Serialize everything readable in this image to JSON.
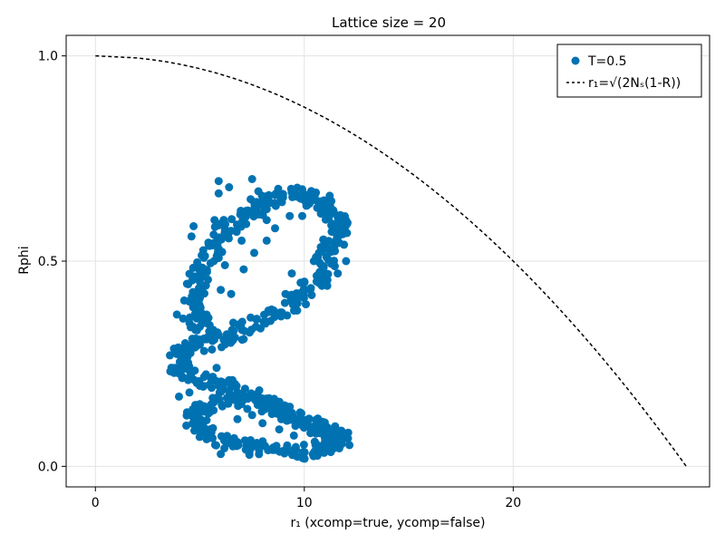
{
  "chart_data": {
    "type": "scatter",
    "title": "Lattice size = 20",
    "xlabel": "r₁ (xcomp=true, ycomp=false)",
    "ylabel": "Rphi",
    "xlim": [
      -1.4,
      29.4
    ],
    "ylim": [
      -0.05,
      1.05
    ],
    "xticks": [
      0,
      10,
      20
    ],
    "xtick_labels": [
      "0",
      "10",
      "20"
    ],
    "yticks": [
      0.0,
      0.5,
      1.0
    ],
    "ytick_labels": [
      "0.0",
      "0.5",
      "1.0"
    ],
    "grid": true,
    "legend_position": "top-right",
    "series": [
      {
        "name": "T=0.5",
        "kind": "scatter",
        "color": "#0072B2",
        "path": [
          [
            11.6,
            0.06
          ],
          [
            11.2,
            0.05
          ],
          [
            10.5,
            0.04
          ],
          [
            9.7,
            0.035
          ],
          [
            8.9,
            0.035
          ],
          [
            8.0,
            0.04
          ],
          [
            7.2,
            0.05
          ],
          [
            6.4,
            0.06
          ],
          [
            5.6,
            0.075
          ],
          [
            5.0,
            0.09
          ],
          [
            4.7,
            0.11
          ],
          [
            4.9,
            0.13
          ],
          [
            5.5,
            0.15
          ],
          [
            6.3,
            0.165
          ],
          [
            7.2,
            0.16
          ],
          [
            8.1,
            0.15
          ],
          [
            9.0,
            0.135
          ],
          [
            9.9,
            0.115
          ],
          [
            10.8,
            0.095
          ],
          [
            11.5,
            0.075
          ],
          [
            11.7,
            0.065
          ],
          [
            11.0,
            0.085
          ],
          [
            10.2,
            0.11
          ],
          [
            9.3,
            0.13
          ],
          [
            8.4,
            0.15
          ],
          [
            7.6,
            0.165
          ],
          [
            6.8,
            0.18
          ],
          [
            6.0,
            0.195
          ],
          [
            5.2,
            0.205
          ],
          [
            4.5,
            0.215
          ],
          [
            4.1,
            0.235
          ],
          [
            3.9,
            0.255
          ],
          [
            4.1,
            0.275
          ],
          [
            4.6,
            0.29
          ],
          [
            5.4,
            0.3
          ],
          [
            6.3,
            0.315
          ],
          [
            7.2,
            0.335
          ],
          [
            8.0,
            0.36
          ],
          [
            8.9,
            0.38
          ],
          [
            9.6,
            0.4
          ],
          [
            10.1,
            0.425
          ],
          [
            10.5,
            0.45
          ],
          [
            10.8,
            0.48
          ],
          [
            11.1,
            0.51
          ],
          [
            11.3,
            0.54
          ],
          [
            11.6,
            0.57
          ],
          [
            11.7,
            0.59
          ],
          [
            11.5,
            0.61
          ],
          [
            11.2,
            0.63
          ],
          [
            10.7,
            0.645
          ],
          [
            10.2,
            0.655
          ],
          [
            9.6,
            0.665
          ],
          [
            9.0,
            0.66
          ],
          [
            8.4,
            0.65
          ],
          [
            7.8,
            0.635
          ],
          [
            7.2,
            0.615
          ],
          [
            6.7,
            0.595
          ],
          [
            6.2,
            0.57
          ],
          [
            5.8,
            0.545
          ],
          [
            5.5,
            0.52
          ],
          [
            5.2,
            0.49
          ],
          [
            4.9,
            0.46
          ],
          [
            4.7,
            0.43
          ],
          [
            4.6,
            0.4
          ],
          [
            4.8,
            0.37
          ],
          [
            5.1,
            0.34
          ],
          [
            5.4,
            0.31
          ]
        ],
        "extra_points": [
          [
            5.9,
            0.695
          ],
          [
            6.4,
            0.68
          ],
          [
            7.5,
            0.7
          ],
          [
            7.8,
            0.67
          ],
          [
            5.9,
            0.665
          ],
          [
            4.7,
            0.585
          ],
          [
            4.6,
            0.56
          ],
          [
            5.7,
            0.6
          ],
          [
            6.8,
            0.58
          ],
          [
            8.2,
            0.55
          ],
          [
            8.6,
            0.58
          ],
          [
            7.0,
            0.55
          ],
          [
            6.2,
            0.49
          ],
          [
            7.1,
            0.48
          ],
          [
            7.6,
            0.52
          ],
          [
            6.0,
            0.43
          ],
          [
            6.5,
            0.42
          ],
          [
            3.9,
            0.37
          ],
          [
            4.2,
            0.36
          ],
          [
            5.0,
            0.45
          ],
          [
            4.0,
            0.17
          ],
          [
            4.5,
            0.18
          ],
          [
            4.8,
            0.14
          ],
          [
            5.1,
            0.1
          ],
          [
            5.4,
            0.08
          ],
          [
            6.0,
            0.03
          ],
          [
            7.3,
            0.045
          ],
          [
            8.6,
            0.04
          ],
          [
            8.0,
            0.105
          ],
          [
            8.8,
            0.09
          ],
          [
            9.5,
            0.075
          ],
          [
            10.5,
            0.06
          ],
          [
            11.0,
            0.06
          ],
          [
            6.8,
            0.115
          ],
          [
            7.5,
            0.125
          ],
          [
            10.7,
            0.52
          ],
          [
            9.9,
            0.61
          ],
          [
            10.1,
            0.635
          ],
          [
            10.4,
            0.66
          ],
          [
            8.8,
            0.665
          ],
          [
            9.3,
            0.61
          ],
          [
            8.2,
            0.6
          ],
          [
            9.4,
            0.47
          ],
          [
            9.1,
            0.42
          ],
          [
            10.0,
            0.45
          ],
          [
            11.4,
            0.08
          ],
          [
            12.0,
            0.07
          ],
          [
            11.8,
            0.055
          ],
          [
            3.8,
            0.24
          ],
          [
            4.3,
            0.3
          ],
          [
            6.6,
            0.35
          ],
          [
            7.1,
            0.31
          ],
          [
            6.4,
            0.21
          ],
          [
            5.8,
            0.24
          ],
          [
            11.0,
            0.04
          ],
          [
            11.9,
            0.54
          ],
          [
            12.0,
            0.5
          ],
          [
            11.6,
            0.47
          ],
          [
            11.1,
            0.44
          ],
          [
            11.4,
            0.62
          ]
        ]
      },
      {
        "name": "r₁=√(2Nₛ(1-R))",
        "kind": "line",
        "style": "dashed",
        "color": "#000000",
        "function": "r1 = sqrt(2*400*(1-R))",
        "R_range": [
          0.0,
          1.0
        ]
      }
    ]
  }
}
